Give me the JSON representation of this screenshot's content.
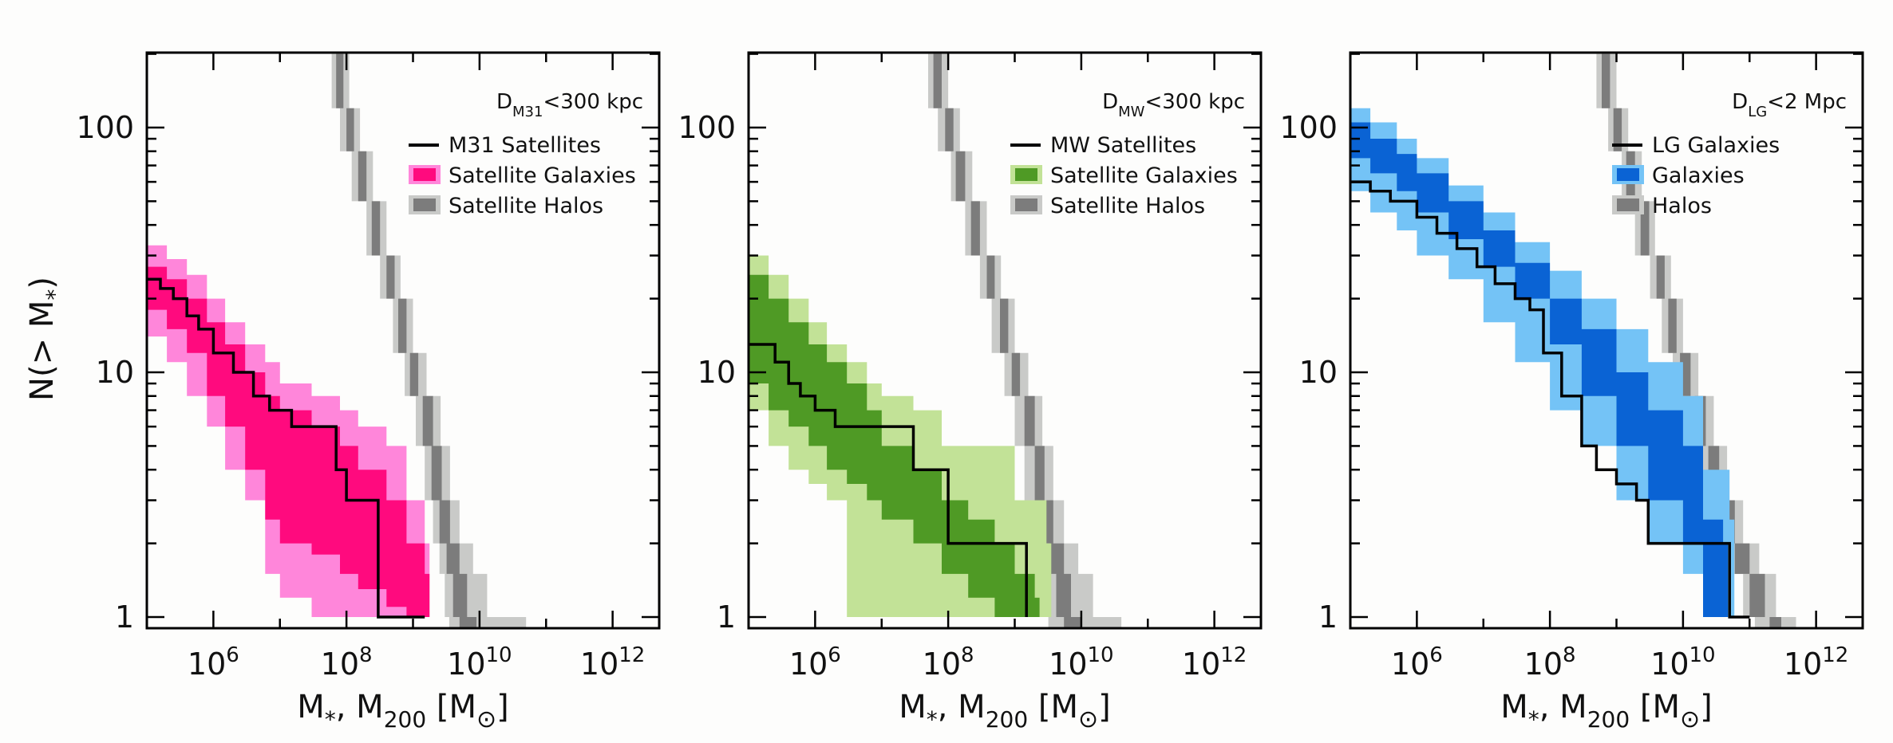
{
  "chart_data": {
    "type": "line",
    "xscale": "log",
    "yscale": "log",
    "xlim": [
      100000,
      1000000000000000
    ],
    "ylim": [
      0.9,
      200
    ],
    "xlim_note": "",
    "x_ticks": [
      "10^6",
      "10^8",
      "10^10",
      "10^12"
    ],
    "y_ticks": [
      "1",
      "10",
      "100"
    ],
    "ylabel": "N(> M*)",
    "xlabel": "M*, M200 [M⊙]",
    "panels": [
      {
        "annotation": "D_M31<300 kpc",
        "legend": [
          "M31 Satellites",
          "Satellite Galaxies",
          "Satellite Halos"
        ],
        "colors": {
          "dark": "#ff0a7e",
          "light": "#ff86da",
          "line": "#000000"
        },
        "observed_line": {
          "x": [
            100000.0,
            160000.0,
            250000.0,
            400000.0,
            600000.0,
            1000000.0,
            2000000.0,
            4000000.0,
            7000000.0,
            15000000.0,
            70000000.0,
            100000000.0,
            300000000.0,
            1500000000.0
          ],
          "y": [
            24,
            22,
            20,
            17,
            15,
            12,
            10,
            8,
            7,
            6,
            4,
            3,
            1,
            1
          ]
        },
        "galaxy_band_inner": {
          "x": [
            100000.0,
            200000.0,
            400000.0,
            800000.0,
            1500000.0,
            3000000.0,
            6000000.0,
            10000000.0,
            30000000.0,
            80000000.0,
            150000000.0,
            400000000.0,
            800000000.0,
            1500000000.0
          ],
          "lo": [
            18,
            15,
            12,
            8,
            6,
            4,
            2.5,
            2,
            1.8,
            1.5,
            1.3,
            1.1,
            1,
            1
          ],
          "hi": [
            27,
            24,
            20,
            16,
            13,
            10,
            8,
            7,
            6,
            5,
            4,
            3,
            2,
            1.5
          ]
        },
        "galaxy_band_outer": {
          "x": [
            100000.0,
            200000.0,
            400000.0,
            800000.0,
            1500000.0,
            3000000.0,
            6000000.0,
            10000000.0,
            30000000.0,
            80000000.0,
            150000000.0,
            400000000.0,
            800000000.0,
            1500000000.0
          ],
          "lo": [
            14,
            11,
            8,
            6,
            4,
            3,
            1.5,
            1.2,
            1,
            1,
            1,
            1,
            1,
            1
          ],
          "hi": [
            33,
            29,
            25,
            20,
            16,
            13,
            11,
            9,
            8,
            7,
            6,
            5,
            3,
            2
          ]
        },
        "halo_band": {
          "y": [
            200,
            120,
            80,
            50,
            30,
            20,
            12,
            8,
            5,
            3,
            2,
            1.5,
            1
          ],
          "inner_lo": [
            70000000.0,
            100000000.0,
            150000000.0,
            240000000.0,
            400000000.0,
            600000000.0,
            900000000.0,
            1400000000.0,
            1900000000.0,
            2500000000.0,
            3200000000.0,
            4000000000.0,
            5000000000.0
          ],
          "inner_hi": [
            90000000.0,
            130000000.0,
            200000000.0,
            320000000.0,
            530000000.0,
            800000000.0,
            1200000000.0,
            2000000000.0,
            2700000000.0,
            3600000000.0,
            5000000000.0,
            6500000000.0,
            9000000000.0
          ],
          "outer_lo": [
            60000000.0,
            80000000.0,
            120000000.0,
            200000000.0,
            320000000.0,
            500000000.0,
            750000000.0,
            1100000000.0,
            1500000000.0,
            2000000000.0,
            2500000000.0,
            3000000000.0,
            3500000000.0
          ],
          "outer_hi": [
            110000000.0,
            160000000.0,
            250000000.0,
            400000000.0,
            650000000.0,
            1000000000.0,
            1600000000.0,
            2600000000.0,
            3600000000.0,
            5000000000.0,
            8000000000.0,
            13000000000.0,
            50000000000.0
          ]
        }
      },
      {
        "annotation": "D_MW<300 kpc",
        "legend": [
          "MW Satellites",
          "Satellite Galaxies",
          "Satellite Halos"
        ],
        "colors": {
          "dark": "#4f9a25",
          "light": "#c2e297",
          "line": "#000000"
        },
        "observed_line": {
          "x": [
            100000.0,
            250000.0,
            400000.0,
            600000.0,
            1000000.0,
            2000000.0,
            30000000.0,
            100000000.0,
            300000000.0,
            1500000000.0
          ],
          "y": [
            13,
            11,
            9,
            8,
            7,
            6,
            4,
            2,
            2,
            1
          ]
        },
        "galaxy_band_inner": {
          "x": [
            100000.0,
            200000.0,
            400000.0,
            800000.0,
            1500000.0,
            3000000.0,
            6000000.0,
            10000000.0,
            30000000.0,
            80000000.0,
            200000000.0,
            500000000.0,
            1000000000.0,
            2000000000.0
          ],
          "lo": [
            9,
            7,
            6,
            5,
            4,
            3.5,
            3,
            2.5,
            2,
            1.5,
            1.2,
            1,
            1,
            1
          ],
          "hi": [
            25,
            20,
            16,
            13,
            11,
            9,
            7,
            5,
            4,
            3,
            2.5,
            2,
            1.5,
            1.2
          ]
        },
        "galaxy_band_outer": {
          "x": [
            100000.0,
            200000.0,
            400000.0,
            800000.0,
            1500000.0,
            3000000.0,
            6000000.0,
            10000000.0,
            30000000.0,
            80000000.0,
            200000000.0,
            500000000.0,
            1000000000.0,
            3000000000.0
          ],
          "lo": [
            7,
            5,
            4,
            3.5,
            3,
            1,
            1,
            1,
            1,
            1,
            1,
            1,
            1,
            1
          ],
          "hi": [
            30,
            25,
            20,
            16,
            13,
            11,
            9,
            8,
            7,
            5,
            5,
            5,
            3,
            2
          ]
        },
        "halo_band": {
          "y": [
            200,
            120,
            80,
            50,
            30,
            20,
            12,
            8,
            5,
            3,
            2,
            1.5,
            1
          ],
          "inner_lo": [
            60000000.0,
            90000000.0,
            130000000.0,
            220000000.0,
            380000000.0,
            600000000.0,
            900000000.0,
            1400000000.0,
            2000000000.0,
            2600000000.0,
            3400000000.0,
            4200000000.0,
            5500000000.0
          ],
          "inner_hi": [
            80000000.0,
            120000000.0,
            180000000.0,
            300000000.0,
            500000000.0,
            800000000.0,
            1200000000.0,
            2000000000.0,
            2800000000.0,
            3800000000.0,
            5500000000.0,
            7000000000.0,
            10000000000.0
          ],
          "outer_lo": [
            50000000.0,
            70000000.0,
            110000000.0,
            180000000.0,
            300000000.0,
            450000000.0,
            700000000.0,
            1000000000.0,
            1400000000.0,
            1800000000.0,
            2300000000.0,
            2800000000.0,
            3200000000.0
          ],
          "outer_hi": [
            100000000.0,
            150000000.0,
            230000000.0,
            380000000.0,
            620000000.0,
            1000000000.0,
            1600000000.0,
            2600000000.0,
            3800000000.0,
            5500000000.0,
            9000000000.0,
            15000000000.0,
            40000000000.0
          ]
        }
      },
      {
        "annotation": "D_LG<2 Mpc",
        "legend": [
          "LG Galaxies",
          "Galaxies",
          "Halos"
        ],
        "colors": {
          "dark": "#0a63d4",
          "light": "#74c3f6",
          "line": "#000000"
        },
        "observed_line": {
          "x": [
            100000.0,
            200000.0,
            400000.0,
            1000000.0,
            2000000.0,
            4000000.0,
            8000000.0,
            15000000.0,
            30000000.0,
            50000000.0,
            80000000.0,
            150000000.0,
            300000000.0,
            500000000.0,
            1000000000.0,
            2000000000.0,
            3000000000.0,
            6000000000.0,
            15000000000.0,
            30000000000.0,
            50000000000.0,
            100000000000.0
          ],
          "y": [
            60,
            55,
            50,
            43,
            37,
            32,
            27,
            23,
            20,
            18,
            12,
            8,
            5,
            4,
            3.5,
            3,
            2,
            2,
            2,
            2,
            1,
            1
          ]
        },
        "galaxy_band_inner": {
          "x": [
            100000.0,
            200000.0,
            500000.0,
            1000000.0,
            3000000.0,
            10000000.0,
            30000000.0,
            100000000.0,
            300000000.0,
            1000000000.0,
            3000000000.0,
            10000000000.0,
            20000000000.0,
            40000000000.0
          ],
          "lo": [
            75,
            65,
            55,
            45,
            35,
            27,
            20,
            13,
            8,
            5,
            3,
            2,
            1,
            1
          ],
          "hi": [
            105,
            90,
            78,
            65,
            50,
            38,
            28,
            20,
            15,
            10,
            7,
            5,
            2.5,
            2
          ]
        },
        "galaxy_band_outer": {
          "x": [
            100000.0,
            200000.0,
            500000.0,
            1000000.0,
            3000000.0,
            10000000.0,
            30000000.0,
            100000000.0,
            300000000.0,
            1000000000.0,
            3000000000.0,
            10000000000.0,
            20000000000.0,
            50000000000.0
          ],
          "lo": [
            55,
            45,
            38,
            30,
            24,
            16,
            11,
            7,
            5,
            3,
            2,
            1.5,
            1,
            1
          ],
          "hi": [
            120,
            105,
            90,
            75,
            58,
            45,
            34,
            26,
            20,
            15,
            11,
            8,
            4,
            2.5
          ]
        },
        "halo_band": {
          "y": [
            200,
            120,
            80,
            50,
            30,
            20,
            12,
            8,
            5,
            3,
            2,
            1.5,
            1
          ],
          "inner_lo": [
            600000000.0,
            900000000.0,
            1400000000.0,
            2300000000.0,
            4000000000.0,
            6000000000.0,
            9000000000.0,
            15000000000.0,
            24000000000.0,
            40000000000.0,
            60000000000.0,
            100000000000.0,
            200000000000.0
          ],
          "inner_hi": [
            800000000.0,
            1200000000.0,
            1900000000.0,
            3100000000.0,
            5300000000.0,
            8000000000.0,
            13000000000.0,
            22000000000.0,
            35000000000.0,
            60000000000.0,
            100000000000.0,
            170000000000.0,
            300000000000.0
          ],
          "outer_lo": [
            500000000.0,
            750000000.0,
            1200000000.0,
            1900000000.0,
            3200000000.0,
            4800000000.0,
            7000000000.0,
            11000000000.0,
            18000000000.0,
            30000000000.0,
            50000000000.0,
            80000000000.0,
            120000000000.0
          ],
          "outer_hi": [
            1000000000.0,
            1500000000.0,
            2400000000.0,
            3800000000.0,
            6600000000.0,
            10000000000.0,
            17000000000.0,
            29000000000.0,
            46000000000.0,
            80000000000.0,
            140000000000.0,
            250000000000.0,
            500000000000.0
          ]
        }
      }
    ]
  }
}
